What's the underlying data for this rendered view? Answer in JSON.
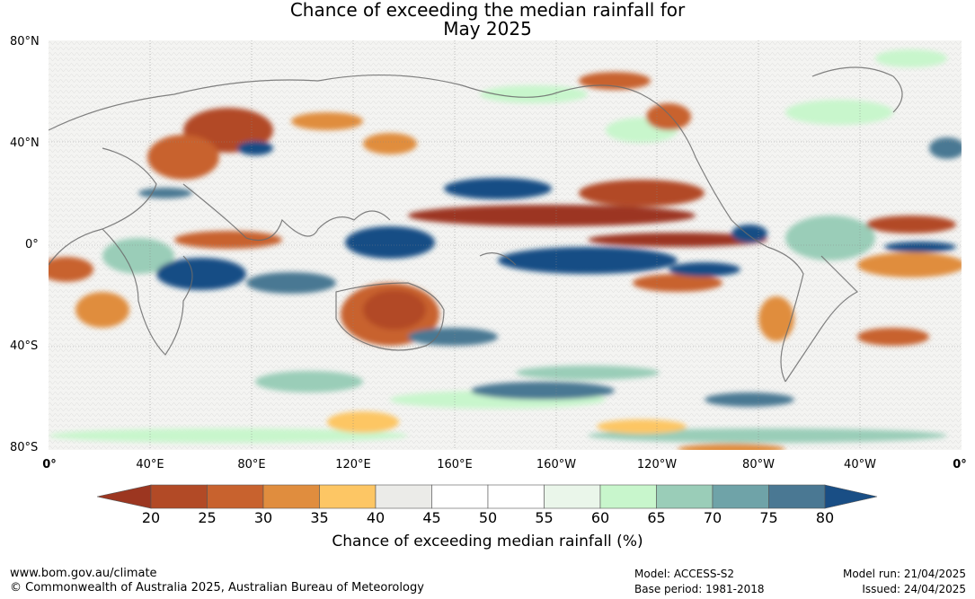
{
  "title": {
    "line1": "Chance of exceeding the median rainfall for",
    "line2": "May 2025"
  },
  "map": {
    "lat_labels": [
      "80°N",
      "40°N",
      "0°",
      "40°S",
      "80°S"
    ],
    "lon_labels": [
      "0°",
      "40°E",
      "80°E",
      "120°E",
      "160°E",
      "160°W",
      "120°W",
      "80°W",
      "40°W",
      "0°"
    ]
  },
  "colorbar": {
    "ticks": [
      "20",
      "25",
      "30",
      "35",
      "40",
      "45",
      "50",
      "55",
      "60",
      "65",
      "70",
      "75",
      "80"
    ],
    "colors": [
      "#9c3620",
      "#b24a26",
      "#c8622e",
      "#e08d3e",
      "#fdc664",
      "#ebebe8",
      "#ffffff",
      "#ffffff",
      "#eaf6ea",
      "#c8f6cc",
      "#9acdb8",
      "#6fa3a8",
      "#4a7893",
      "#194e85"
    ],
    "label": "Chance of exceeding median rainfall (%)"
  },
  "footer": {
    "website": "www.bom.gov.au/climate",
    "copyright": "© Commonwealth of Australia 2025, Australian Bureau of Meteorology",
    "model": "Model: ACCESS-S2",
    "base_period": "Base period: 1981-2018",
    "model_run": "Model run: 21/04/2025",
    "issued": "Issued: 24/04/2025"
  }
}
